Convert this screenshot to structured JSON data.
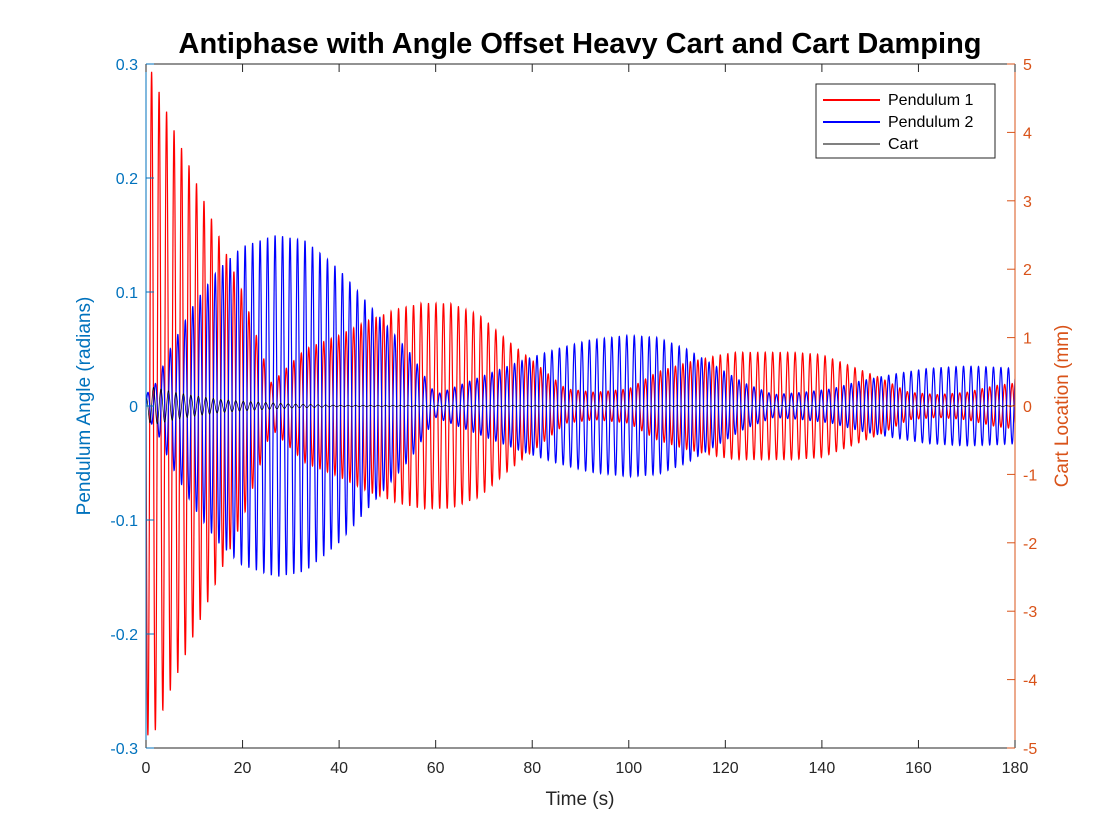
{
  "chart_data": {
    "type": "line",
    "title": "Antiphase with Angle Offset Heavy Cart and Cart Damping",
    "xlabel": "Time (s)",
    "ylabel_left": "Pendulum Angle (radians)",
    "ylabel_right": "Cart Location (mm)",
    "xlim": [
      0,
      180
    ],
    "ylim_left": [
      -0.3,
      0.3
    ],
    "ylim_right": [
      -5,
      5
    ],
    "x_ticks": [
      "0",
      "20",
      "40",
      "60",
      "80",
      "100",
      "120",
      "140",
      "160",
      "180"
    ],
    "y_ticks_left": [
      "-0.3",
      "-0.2",
      "-0.1",
      "0",
      "0.1",
      "0.2",
      "0.3"
    ],
    "y_ticks_right": [
      "-5",
      "-4",
      "-3",
      "-2",
      "-1",
      "0",
      "1",
      "2",
      "3",
      "4",
      "5"
    ],
    "grid": false,
    "legend_position": "top-right",
    "colors": {
      "left_axis": "#0072BD",
      "right_axis": "#D95319",
      "pendulum1": "#ff0000",
      "pendulum2": "#0000ff",
      "cart": "#000000"
    },
    "oscillation_period_s": 1.55,
    "series": [
      {
        "name": "Pendulum 1",
        "axis": "left",
        "envelope": {
          "t": [
            0,
            1,
            5,
            10,
            15,
            20,
            26,
            33,
            40,
            46,
            52,
            57,
            63,
            69,
            75,
            80,
            87,
            93,
            100,
            106,
            112,
            118,
            122,
            128,
            134,
            140,
            146,
            152,
            158,
            164,
            170,
            176,
            180
          ],
          "amp": [
            0.285,
            0.295,
            0.25,
            0.2,
            0.15,
            0.1,
            0.02,
            0.05,
            0.062,
            0.075,
            0.085,
            0.09,
            0.09,
            0.08,
            0.057,
            0.04,
            0.015,
            0.012,
            0.015,
            0.03,
            0.038,
            0.044,
            0.047,
            0.047,
            0.047,
            0.045,
            0.035,
            0.025,
            0.012,
            0.01,
            0.012,
            0.018,
            0.02
          ]
        }
      },
      {
        "name": "Pendulum 2",
        "axis": "left",
        "envelope": {
          "t": [
            0,
            2,
            5,
            10,
            15,
            20,
            27,
            33,
            40,
            45,
            50,
            55,
            60,
            66,
            72,
            78,
            85,
            92,
            100,
            106,
            112,
            118,
            124,
            130,
            136,
            142,
            148,
            155,
            162,
            170,
            176,
            180
          ],
          "amp": [
            0.01,
            0.02,
            0.05,
            0.09,
            0.12,
            0.14,
            0.15,
            0.145,
            0.12,
            0.095,
            0.07,
            0.045,
            0.01,
            0.02,
            0.03,
            0.04,
            0.05,
            0.058,
            0.062,
            0.06,
            0.05,
            0.035,
            0.02,
            0.01,
            0.012,
            0.015,
            0.022,
            0.028,
            0.033,
            0.035,
            0.034,
            0.033
          ]
        }
      },
      {
        "name": "Cart",
        "axis": "right",
        "envelope": {
          "t": [
            0,
            1,
            3,
            6,
            10,
            15,
            20,
            25,
            30,
            40,
            180
          ],
          "amp": [
            0.1,
            0.28,
            0.25,
            0.2,
            0.15,
            0.1,
            0.07,
            0.05,
            0.03,
            0.01,
            0.01
          ]
        }
      }
    ]
  }
}
